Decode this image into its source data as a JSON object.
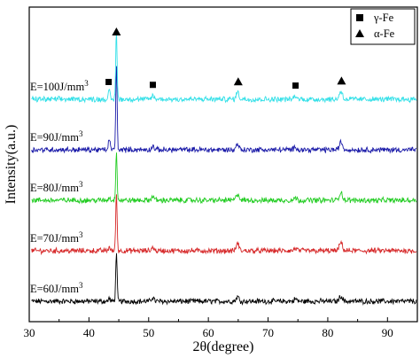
{
  "chart_data": {
    "type": "line",
    "title": "",
    "xlabel": "2θ(degree)",
    "ylabel": "Intensity(a.u.)",
    "xlim": [
      30,
      95
    ],
    "xticks": [
      30,
      40,
      50,
      60,
      70,
      80,
      90
    ],
    "y_ticks_shown": false,
    "grid": false,
    "legend_position": "top-right",
    "legend": [
      {
        "marker": "square",
        "label": "γ-Fe"
      },
      {
        "marker": "triangle",
        "label": "α-Fe"
      }
    ],
    "series": [
      {
        "name": "E=60J/mm3",
        "label_base": "E=60J/mm",
        "label_sup": "3",
        "color": "#000000",
        "baseline": 0.0,
        "peaks": [
          {
            "x": 43.4,
            "h": 0.022,
            "w": 0.18
          },
          {
            "x": 44.6,
            "h": 0.33,
            "w": 0.16
          },
          {
            "x": 50.7,
            "h": 0.028,
            "w": 0.28
          },
          {
            "x": 64.9,
            "h": 0.03,
            "w": 0.32
          },
          {
            "x": 74.6,
            "h": 0.016,
            "w": 0.32
          },
          {
            "x": 82.2,
            "h": 0.036,
            "w": 0.36
          }
        ]
      },
      {
        "name": "E=70J/mm3",
        "label_base": "E=70J/mm",
        "label_sup": "3",
        "color": "#d62728",
        "baseline": 1.0,
        "peaks": [
          {
            "x": 43.4,
            "h": 0.028,
            "w": 0.18
          },
          {
            "x": 44.6,
            "h": 0.39,
            "w": 0.16
          },
          {
            "x": 50.7,
            "h": 0.025,
            "w": 0.28
          },
          {
            "x": 64.9,
            "h": 0.05,
            "w": 0.32
          },
          {
            "x": 74.6,
            "h": 0.016,
            "w": 0.32
          },
          {
            "x": 82.2,
            "h": 0.055,
            "w": 0.36
          }
        ]
      },
      {
        "name": "E=80J/mm3",
        "label_base": "E=80J/mm",
        "label_sup": "3",
        "color": "#22cc22",
        "baseline": 2.0,
        "peaks": [
          {
            "x": 43.4,
            "h": 0.022,
            "w": 0.18
          },
          {
            "x": 44.6,
            "h": 0.33,
            "w": 0.16
          },
          {
            "x": 50.7,
            "h": 0.03,
            "w": 0.28
          },
          {
            "x": 64.9,
            "h": 0.045,
            "w": 0.32
          },
          {
            "x": 74.6,
            "h": 0.016,
            "w": 0.32
          },
          {
            "x": 82.2,
            "h": 0.055,
            "w": 0.36
          }
        ]
      },
      {
        "name": "E=90J/mm3",
        "label_base": "E=90J/mm",
        "label_sup": "3",
        "color": "#1a1aa8",
        "baseline": 3.0,
        "peaks": [
          {
            "x": 43.4,
            "h": 0.08,
            "w": 0.18
          },
          {
            "x": 44.6,
            "h": 0.56,
            "w": 0.16
          },
          {
            "x": 50.7,
            "h": 0.025,
            "w": 0.28
          },
          {
            "x": 64.9,
            "h": 0.04,
            "w": 0.32
          },
          {
            "x": 74.6,
            "h": 0.02,
            "w": 0.32
          },
          {
            "x": 82.2,
            "h": 0.05,
            "w": 0.36
          }
        ]
      },
      {
        "name": "E=100J/mm3",
        "label_base": "E=100J/mm",
        "label_sup": "3",
        "color": "#33e0e8",
        "baseline": 4.0,
        "peaks": [
          {
            "x": 43.4,
            "h": 0.06,
            "w": 0.18
          },
          {
            "x": 44.6,
            "h": 0.46,
            "w": 0.16
          },
          {
            "x": 50.7,
            "h": 0.025,
            "w": 0.28
          },
          {
            "x": 64.9,
            "h": 0.05,
            "w": 0.32
          },
          {
            "x": 74.6,
            "h": 0.02,
            "w": 0.32
          },
          {
            "x": 82.2,
            "h": 0.055,
            "w": 0.36
          }
        ]
      }
    ],
    "markers": [
      {
        "shape": "square",
        "x": 43.3,
        "series": "E=100J/mm3"
      },
      {
        "shape": "triangle",
        "x": 44.6,
        "series": "E=100J/mm3"
      },
      {
        "shape": "square",
        "x": 50.7,
        "series": "E=100J/mm3"
      },
      {
        "shape": "triangle",
        "x": 65.0,
        "series": "E=100J/mm3"
      },
      {
        "shape": "square",
        "x": 74.6,
        "series": "E=100J/mm3"
      },
      {
        "shape": "triangle",
        "x": 82.3,
        "series": "E=100J/mm3"
      }
    ]
  }
}
